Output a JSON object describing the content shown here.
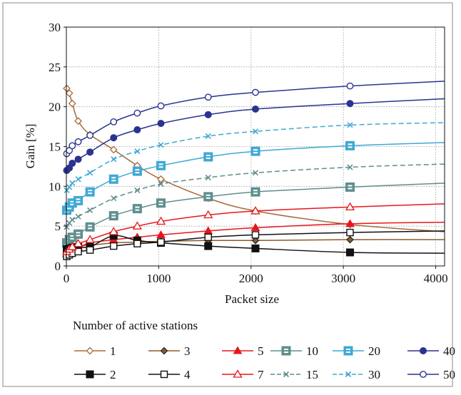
{
  "chart_data": {
    "type": "line",
    "title": "",
    "xlabel": "Packet size",
    "ylabel": "Gain [%]",
    "xlim": [
      0,
      4096
    ],
    "ylim": [
      0,
      30
    ],
    "xticks": [
      0,
      1000,
      2000,
      3000,
      4000
    ],
    "yticks": [
      0,
      5,
      10,
      15,
      20,
      25,
      30
    ],
    "grid": true,
    "legend": {
      "title": "Number of active stations",
      "placement": "bottom",
      "order": [
        "1",
        "3",
        "5",
        "10",
        "20",
        "40",
        "2",
        "4",
        "7",
        "15",
        "30",
        "50"
      ]
    },
    "series": [
      {
        "name": "1",
        "color": "#a86a3a",
        "marker": "diamond-open",
        "dash": false,
        "x": [
          4,
          32,
          64,
          128,
          256,
          512,
          768,
          1024,
          1536,
          2048,
          3072,
          4096
        ],
        "y": [
          22.3,
          21.7,
          20.4,
          18.2,
          16.5,
          14.6,
          12.6,
          10.9,
          8.5,
          6.9,
          5.2,
          4.3
        ]
      },
      {
        "name": "3",
        "color": "#8a5a2a",
        "marker": "diamond-filled",
        "dash": false,
        "x": [
          4,
          32,
          64,
          128,
          256,
          512,
          768,
          1024,
          1536,
          2048,
          3072,
          4096
        ],
        "y": [
          1.9,
          2.2,
          2.4,
          2.5,
          2.6,
          2.9,
          3.0,
          3.1,
          3.2,
          3.2,
          3.3,
          3.3
        ]
      },
      {
        "name": "5",
        "color": "#e8161b",
        "marker": "triangle-filled",
        "dash": false,
        "x": [
          4,
          32,
          64,
          128,
          256,
          512,
          768,
          1024,
          1536,
          2048,
          3072,
          4096
        ],
        "y": [
          1.5,
          1.8,
          2.0,
          2.3,
          2.9,
          3.3,
          3.6,
          3.9,
          4.4,
          4.8,
          5.3,
          5.5
        ]
      },
      {
        "name": "10",
        "color": "#5e8e8e",
        "marker": "square-open-bar",
        "dash": false,
        "x": [
          4,
          32,
          64,
          128,
          256,
          512,
          768,
          1024,
          1536,
          2048,
          3072,
          4096
        ],
        "y": [
          2.9,
          3.3,
          3.6,
          4.0,
          4.9,
          6.3,
          7.2,
          7.9,
          8.7,
          9.3,
          9.9,
          10.4
        ]
      },
      {
        "name": "20",
        "color": "#3fa8d4",
        "marker": "square-open-bar",
        "dash": false,
        "x": [
          4,
          32,
          64,
          128,
          256,
          512,
          768,
          1024,
          1536,
          2048,
          3072,
          4096
        ],
        "y": [
          7.0,
          7.4,
          7.9,
          8.2,
          9.3,
          10.9,
          11.9,
          12.6,
          13.7,
          14.4,
          15.1,
          15.5
        ]
      },
      {
        "name": "40",
        "color": "#2a338f",
        "marker": "circle-filled",
        "dash": false,
        "x": [
          4,
          32,
          64,
          128,
          256,
          512,
          768,
          1024,
          1536,
          2048,
          3072,
          4096
        ],
        "y": [
          12.0,
          12.3,
          12.9,
          13.4,
          14.3,
          16.1,
          17.1,
          17.9,
          19.0,
          19.7,
          20.4,
          21.0
        ]
      },
      {
        "name": "2",
        "color": "#111111",
        "marker": "square-filled",
        "dash": false,
        "x": [
          4,
          32,
          64,
          128,
          256,
          512,
          768,
          1024,
          1536,
          2048,
          3072,
          4096
        ],
        "y": [
          2.1,
          2.2,
          2.3,
          2.4,
          2.4,
          3.8,
          3.2,
          2.9,
          2.5,
          2.2,
          1.7,
          1.6
        ]
      },
      {
        "name": "4",
        "color": "#111111",
        "marker": "square-open",
        "dash": false,
        "x": [
          4,
          32,
          64,
          128,
          256,
          512,
          768,
          1024,
          1536,
          2048,
          3072,
          4096
        ],
        "y": [
          1.2,
          1.4,
          1.6,
          1.8,
          2.0,
          2.5,
          2.8,
          3.0,
          3.6,
          3.9,
          4.2,
          4.4
        ]
      },
      {
        "name": "7",
        "color": "#e8161b",
        "marker": "triangle-open",
        "dash": false,
        "x": [
          4,
          32,
          64,
          128,
          256,
          512,
          768,
          1024,
          1536,
          2048,
          3072,
          4096
        ],
        "y": [
          1.8,
          2.1,
          2.4,
          2.8,
          3.3,
          4.3,
          5.0,
          5.6,
          6.4,
          6.9,
          7.4,
          7.8
        ]
      },
      {
        "name": "15",
        "color": "#5e8e8e",
        "marker": "x",
        "dash": true,
        "x": [
          4,
          32,
          64,
          128,
          256,
          512,
          768,
          1024,
          1536,
          2048,
          3072,
          4096
        ],
        "y": [
          4.9,
          5.4,
          5.8,
          6.2,
          7.0,
          8.5,
          9.5,
          10.3,
          11.1,
          11.7,
          12.4,
          12.8
        ]
      },
      {
        "name": "30",
        "color": "#3fa8d4",
        "marker": "x",
        "dash": true,
        "x": [
          4,
          32,
          64,
          128,
          256,
          512,
          768,
          1024,
          1536,
          2048,
          3072,
          4096
        ],
        "y": [
          9.5,
          9.9,
          10.4,
          10.9,
          11.7,
          13.4,
          14.4,
          15.2,
          16.3,
          16.9,
          17.7,
          18.0
        ]
      },
      {
        "name": "50",
        "color": "#2a338f",
        "marker": "circle-open",
        "dash": false,
        "x": [
          4,
          32,
          64,
          128,
          256,
          512,
          768,
          1024,
          1536,
          2048,
          3072,
          4096
        ],
        "y": [
          14.1,
          14.5,
          15.1,
          15.6,
          16.4,
          18.1,
          19.2,
          20.1,
          21.2,
          21.8,
          22.6,
          23.2
        ]
      }
    ]
  }
}
